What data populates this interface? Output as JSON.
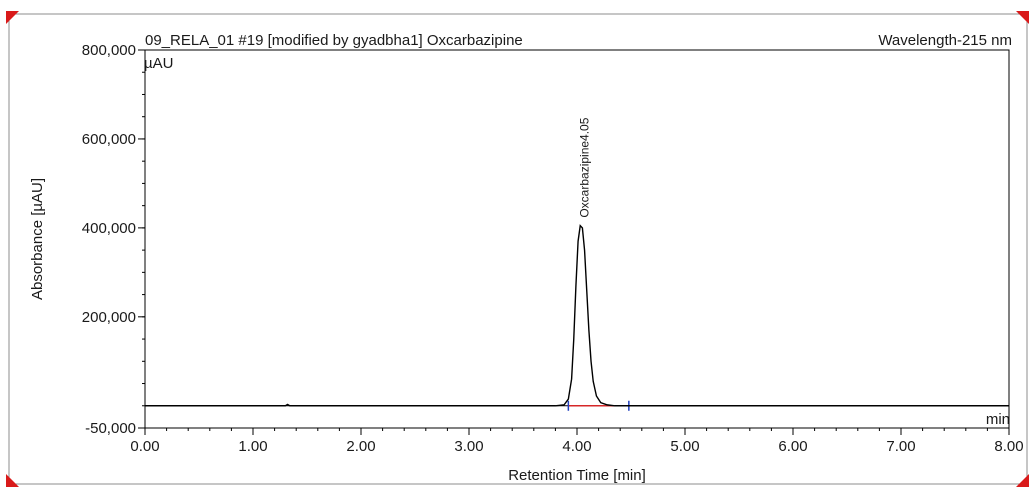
{
  "chart_data": {
    "type": "line",
    "title": "09_RELA_01 #19 [modified by gyadbha1]  Oxcarbazipine",
    "subtitle": "Wavelength-215 nm",
    "xlabel": "Retention Time [min]",
    "ylabel": "Absorbance [µAU]",
    "y_unit_label": "µAU",
    "x_unit_label": "min",
    "xlim": [
      0.0,
      8.0
    ],
    "ylim": [
      -50000,
      800000
    ],
    "x_ticks": [
      0.0,
      1.0,
      2.0,
      3.0,
      4.0,
      5.0,
      6.0,
      7.0,
      8.0
    ],
    "x_tick_labels": [
      "0.00",
      "1.00",
      "2.00",
      "3.00",
      "4.00",
      "5.00",
      "6.00",
      "7.00",
      "8.00"
    ],
    "y_ticks": [
      -50000,
      200000,
      400000,
      600000,
      800000
    ],
    "y_tick_labels": [
      "-50,000",
      "200,000",
      "400,000",
      "600,000",
      "800,000"
    ],
    "baseline": 0,
    "series": [
      {
        "color": "#000000",
        "x": [
          0.0,
          1.0,
          1.3,
          1.32,
          1.34,
          2.0,
          3.0,
          3.8,
          3.88,
          3.92,
          3.95,
          3.97,
          3.99,
          4.01,
          4.03,
          4.05,
          4.07,
          4.09,
          4.11,
          4.13,
          4.15,
          4.18,
          4.22,
          4.28,
          4.35,
          4.5,
          5.0,
          6.0,
          7.0,
          8.0
        ],
        "y": [
          0,
          0,
          0,
          3000,
          0,
          0,
          0,
          0,
          2000,
          15000,
          60000,
          150000,
          270000,
          370000,
          405000,
          400000,
          350000,
          260000,
          170000,
          100000,
          55000,
          22000,
          7000,
          2000,
          0,
          0,
          0,
          0,
          0,
          0
        ]
      }
    ],
    "integration_baseline": {
      "color": "#d62728",
      "x_start": 3.92,
      "x_end": 4.48
    },
    "peak_delimiters": {
      "color": "#1f3fbf",
      "x": [
        3.92,
        4.48
      ]
    },
    "annotations": [
      {
        "text": "Oxcarbazipine4.05",
        "x": 4.05,
        "y": 405000,
        "rotation": -90
      }
    ],
    "grid": false,
    "legend": "none"
  }
}
